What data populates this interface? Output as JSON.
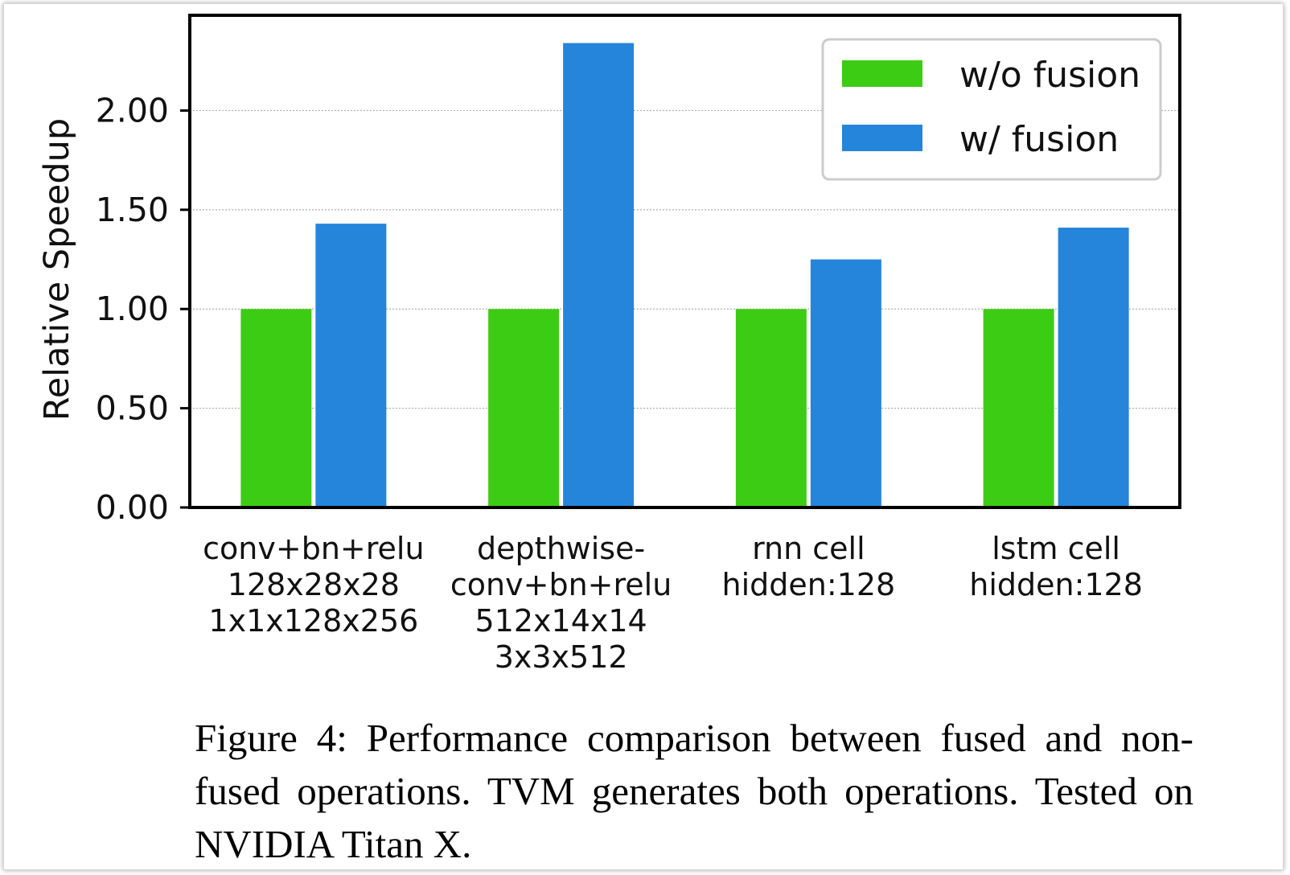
{
  "chart_data": {
    "type": "bar",
    "title": "",
    "xlabel": "",
    "ylabel": "Relative Speedup",
    "ylim": [
      0,
      2.48
    ],
    "yticks": [
      "0.00",
      "0.50",
      "1.00",
      "1.50",
      "2.00"
    ],
    "grid": "y-dotted",
    "legend_position": "top-right",
    "categories": [
      [
        "conv+bn+relu",
        "128x28x28",
        "1x1x128x256"
      ],
      [
        "depthwise-",
        "conv+bn+relu",
        "512x14x14",
        "3x3x512"
      ],
      [
        "rnn cell",
        "hidden:128"
      ],
      [
        "lstm cell",
        "hidden:128"
      ]
    ],
    "series": [
      {
        "name": "w/o fusion",
        "color": "#3dcc14",
        "values": [
          1.0,
          1.0,
          1.0,
          1.0
        ]
      },
      {
        "name": "w/ fusion",
        "color": "#2585db",
        "values": [
          1.43,
          2.34,
          1.25,
          1.41
        ]
      }
    ]
  },
  "caption": "Figure 4: Performance comparison between fused and non-fused operations. TVM generates both operations. Tested on NVIDIA Titan X."
}
